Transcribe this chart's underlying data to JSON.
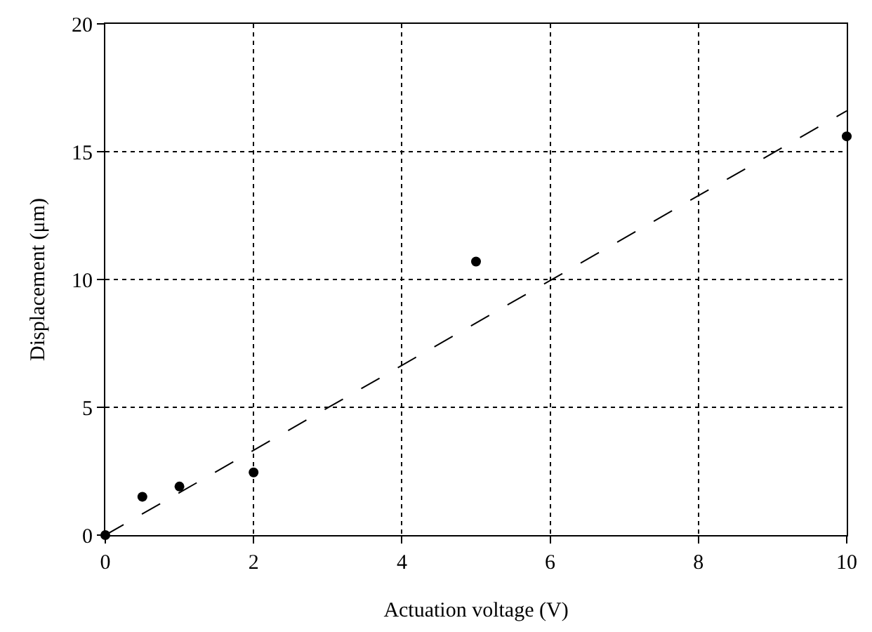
{
  "chart_data": {
    "type": "scatter",
    "xlabel": "Actuation voltage (V)",
    "ylabel": "Displacement (μm)",
    "xlim": [
      0,
      10
    ],
    "xticks": [
      0,
      2,
      4,
      6,
      8,
      10
    ],
    "ylim": [
      0,
      20
    ],
    "yticks": [
      0,
      5,
      10,
      15,
      20
    ],
    "grid": true,
    "marker": "circle",
    "series": [
      {
        "color": "#000000",
        "x": [
          0,
          0.5,
          1,
          2,
          5,
          10
        ],
        "values": [
          0,
          1.5,
          1.9,
          2.45,
          10.7,
          15.6
        ]
      },
      {
        "type": "line",
        "color": "#000000",
        "line_style": "dashed",
        "marker": "none",
        "x": [
          0,
          10
        ],
        "values": [
          0,
          16.6
        ]
      }
    ]
  }
}
